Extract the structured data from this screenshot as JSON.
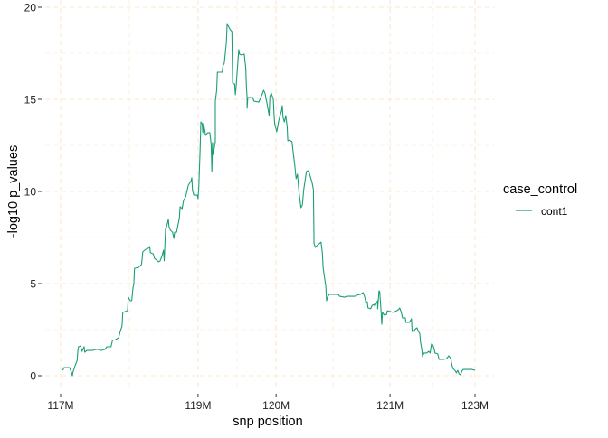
{
  "chart_data": {
    "type": "line",
    "title": "",
    "xlabel": "snp position",
    "ylabel": "-log10 p_values",
    "xlim": [
      116.7,
      123.3
    ],
    "ylim": [
      -0.6,
      20.4
    ],
    "x_ticks": [
      {
        "value": 117.0,
        "label": "117M"
      },
      {
        "value": 118.99,
        "label": "119M"
      },
      {
        "value": 120.12,
        "label": "120M"
      },
      {
        "value": 121.77,
        "label": "121M"
      },
      {
        "value": 123.0,
        "label": "123M"
      }
    ],
    "y_ticks": [
      {
        "value": 0,
        "label": "0"
      },
      {
        "value": 5,
        "label": "5"
      },
      {
        "value": 10,
        "label": "10"
      },
      {
        "value": 15,
        "label": "15"
      },
      {
        "value": 20,
        "label": "20"
      }
    ],
    "grid": true,
    "grid_style": "dashed",
    "grid_color": "#fbe8cf",
    "legend": {
      "title": "case_control",
      "placement": "right",
      "entries": [
        {
          "label": "cont1",
          "color": "#1b9e77"
        }
      ]
    },
    "series": [
      {
        "name": "cont1",
        "color": "#1b9e77",
        "points": [
          [
            117.03,
            0.29
          ],
          [
            117.05,
            0.44
          ],
          [
            117.13,
            0.44
          ],
          [
            117.14,
            0.34
          ],
          [
            117.16,
            0.15
          ],
          [
            117.17,
            0.0
          ],
          [
            117.18,
            0.2
          ],
          [
            117.21,
            0.54
          ],
          [
            117.24,
            0.83
          ],
          [
            117.25,
            1.37
          ],
          [
            117.26,
            1.57
          ],
          [
            117.29,
            1.62
          ],
          [
            117.31,
            1.32
          ],
          [
            117.34,
            1.57
          ],
          [
            117.35,
            1.27
          ],
          [
            117.38,
            1.37
          ],
          [
            117.46,
            1.37
          ],
          [
            117.51,
            1.42
          ],
          [
            117.55,
            1.42
          ],
          [
            117.58,
            1.37
          ],
          [
            117.64,
            1.42
          ],
          [
            117.67,
            1.57
          ],
          [
            117.73,
            1.57
          ],
          [
            117.75,
            1.91
          ],
          [
            117.8,
            1.96
          ],
          [
            117.84,
            2.06
          ],
          [
            117.86,
            2.35
          ],
          [
            117.89,
            2.7
          ],
          [
            117.9,
            3.43
          ],
          [
            117.97,
            3.53
          ],
          [
            117.98,
            4.26
          ],
          [
            118.01,
            4.07
          ],
          [
            118.03,
            4.07
          ],
          [
            118.05,
            4.8
          ],
          [
            118.06,
            4.95
          ],
          [
            118.07,
            5.83
          ],
          [
            118.13,
            5.88
          ],
          [
            118.17,
            6.03
          ],
          [
            118.18,
            6.32
          ],
          [
            118.19,
            6.72
          ],
          [
            118.23,
            6.86
          ],
          [
            118.27,
            6.91
          ],
          [
            118.29,
            7.01
          ],
          [
            118.3,
            6.67
          ],
          [
            118.34,
            6.62
          ],
          [
            118.36,
            6.37
          ],
          [
            118.39,
            6.27
          ],
          [
            118.42,
            6.18
          ],
          [
            118.44,
            6.23
          ],
          [
            118.47,
            6.52
          ],
          [
            118.49,
            6.81
          ],
          [
            118.5,
            6.23
          ],
          [
            118.52,
            7.99
          ],
          [
            118.53,
            8.04
          ],
          [
            118.56,
            8.48
          ],
          [
            118.57,
            8.09
          ],
          [
            118.59,
            7.89
          ],
          [
            118.62,
            7.79
          ],
          [
            118.64,
            7.45
          ],
          [
            118.65,
            7.79
          ],
          [
            118.68,
            7.79
          ],
          [
            118.72,
            8.58
          ],
          [
            118.73,
            9.17
          ],
          [
            118.76,
            9.07
          ],
          [
            118.78,
            9.51
          ],
          [
            118.81,
            9.71
          ],
          [
            118.85,
            10.34
          ],
          [
            118.89,
            10.59
          ],
          [
            118.9,
            10.74
          ],
          [
            118.91,
            10.05
          ],
          [
            118.93,
            9.8
          ],
          [
            118.98,
            9.8
          ],
          [
            118.99,
            9.61
          ],
          [
            119.0,
            10.2
          ],
          [
            119.02,
            12.3
          ],
          [
            119.03,
            13.77
          ],
          [
            119.05,
            13.68
          ],
          [
            119.06,
            13.19
          ],
          [
            119.07,
            13.68
          ],
          [
            119.1,
            13.04
          ],
          [
            119.13,
            13.19
          ],
          [
            119.16,
            13.19
          ],
          [
            119.18,
            12.55
          ],
          [
            119.19,
            11.08
          ],
          [
            119.2,
            12.65
          ],
          [
            119.21,
            12.01
          ],
          [
            119.24,
            12.7
          ],
          [
            119.24,
            14.9
          ],
          [
            119.26,
            15.49
          ],
          [
            119.27,
            16.47
          ],
          [
            119.34,
            16.47
          ],
          [
            119.35,
            16.81
          ],
          [
            119.37,
            16.96
          ],
          [
            119.38,
            17.35
          ],
          [
            119.4,
            18.09
          ],
          [
            119.41,
            19.07
          ],
          [
            119.43,
            18.97
          ],
          [
            119.45,
            18.82
          ],
          [
            119.46,
            18.77
          ],
          [
            119.48,
            18.68
          ],
          [
            119.49,
            15.88
          ],
          [
            119.52,
            15.83
          ],
          [
            119.53,
            15.25
          ],
          [
            119.54,
            15.64
          ],
          [
            119.55,
            16.13
          ],
          [
            119.58,
            17.7
          ],
          [
            119.59,
            17.45
          ],
          [
            119.62,
            17.4
          ],
          [
            119.66,
            17.45
          ],
          [
            119.67,
            17.06
          ],
          [
            119.68,
            16.72
          ],
          [
            119.69,
            15.74
          ],
          [
            119.7,
            15.1
          ],
          [
            119.7,
            14.51
          ],
          [
            119.71,
            15.1
          ],
          [
            119.78,
            15.1
          ],
          [
            119.8,
            14.9
          ],
          [
            119.87,
            14.85
          ],
          [
            119.91,
            15.2
          ],
          [
            119.94,
            15.49
          ],
          [
            119.96,
            15.34
          ],
          [
            119.99,
            14.75
          ],
          [
            120.02,
            14.12
          ],
          [
            120.03,
            15.15
          ],
          [
            120.05,
            15.34
          ],
          [
            120.08,
            15.0
          ],
          [
            120.09,
            14.17
          ],
          [
            120.1,
            13.68
          ],
          [
            120.13,
            13.24
          ],
          [
            120.16,
            13.87
          ],
          [
            120.2,
            14.41
          ],
          [
            120.21,
            14.66
          ],
          [
            120.22,
            14.02
          ],
          [
            120.24,
            13.77
          ],
          [
            120.26,
            14.12
          ],
          [
            120.28,
            13.53
          ],
          [
            120.29,
            12.75
          ],
          [
            120.31,
            12.79
          ],
          [
            120.35,
            12.7
          ],
          [
            120.37,
            12.06
          ],
          [
            120.39,
            11.42
          ],
          [
            120.41,
            10.69
          ],
          [
            120.43,
            10.93
          ],
          [
            120.45,
            10.0
          ],
          [
            120.48,
            9.12
          ],
          [
            120.5,
            9.26
          ],
          [
            120.52,
            10.1
          ],
          [
            120.56,
            11.08
          ],
          [
            120.59,
            11.13
          ],
          [
            120.64,
            10.49
          ],
          [
            120.66,
            10.1
          ],
          [
            120.67,
            7.16
          ],
          [
            120.69,
            6.96
          ],
          [
            120.71,
            7.06
          ],
          [
            120.76,
            7.21
          ],
          [
            120.77,
            7.25
          ],
          [
            120.79,
            6.67
          ],
          [
            120.8,
            5.88
          ],
          [
            120.82,
            5.34
          ],
          [
            120.84,
            4.85
          ],
          [
            120.85,
            4.07
          ],
          [
            120.87,
            4.31
          ],
          [
            120.89,
            4.41
          ],
          [
            121.02,
            4.41
          ],
          [
            121.04,
            4.31
          ],
          [
            121.11,
            4.26
          ],
          [
            121.14,
            4.31
          ],
          [
            121.26,
            4.31
          ],
          [
            121.28,
            4.36
          ],
          [
            121.34,
            4.41
          ],
          [
            121.38,
            4.51
          ],
          [
            121.4,
            4.31
          ],
          [
            121.42,
            3.97
          ],
          [
            121.44,
            4.02
          ],
          [
            121.45,
            3.68
          ],
          [
            121.49,
            3.63
          ],
          [
            121.51,
            3.82
          ],
          [
            121.54,
            3.87
          ],
          [
            121.55,
            3.77
          ],
          [
            121.59,
            4.07
          ],
          [
            121.59,
            3.63
          ],
          [
            121.61,
            4.61
          ],
          [
            121.62,
            4.56
          ],
          [
            121.64,
            3.48
          ],
          [
            121.65,
            2.79
          ],
          [
            121.66,
            3.43
          ],
          [
            121.69,
            3.28
          ],
          [
            121.72,
            3.33
          ],
          [
            121.73,
            3.53
          ],
          [
            121.82,
            3.43
          ],
          [
            121.89,
            3.58
          ],
          [
            121.91,
            3.68
          ],
          [
            121.93,
            3.48
          ],
          [
            121.95,
            3.14
          ],
          [
            121.99,
            3.14
          ],
          [
            122.0,
            2.89
          ],
          [
            122.05,
            2.89
          ],
          [
            122.08,
            3.09
          ],
          [
            122.09,
            2.4
          ],
          [
            122.11,
            2.4
          ],
          [
            122.14,
            2.55
          ],
          [
            122.16,
            2.6
          ],
          [
            122.18,
            2.4
          ],
          [
            122.2,
            2.3
          ],
          [
            122.21,
            1.86
          ],
          [
            122.23,
            1.42
          ],
          [
            122.24,
            1.03
          ],
          [
            122.26,
            1.23
          ],
          [
            122.3,
            1.23
          ],
          [
            122.33,
            1.32
          ],
          [
            122.35,
            1.23
          ],
          [
            122.37,
            1.72
          ],
          [
            122.39,
            1.67
          ],
          [
            122.41,
            1.42
          ],
          [
            122.42,
            1.23
          ],
          [
            122.46,
            1.18
          ],
          [
            122.48,
            0.88
          ],
          [
            122.55,
            0.88
          ],
          [
            122.59,
            0.93
          ],
          [
            122.62,
            1.08
          ],
          [
            122.65,
            0.93
          ],
          [
            122.66,
            0.69
          ],
          [
            122.68,
            0.39
          ],
          [
            122.71,
            0.29
          ],
          [
            122.73,
            0.15
          ],
          [
            122.75,
            0.29
          ],
          [
            122.77,
            0.1
          ],
          [
            122.79,
            0.05
          ],
          [
            122.81,
            0.25
          ],
          [
            122.83,
            0.34
          ],
          [
            122.87,
            0.34
          ],
          [
            122.96,
            0.34
          ],
          [
            123.0,
            0.29
          ]
        ]
      }
    ]
  }
}
